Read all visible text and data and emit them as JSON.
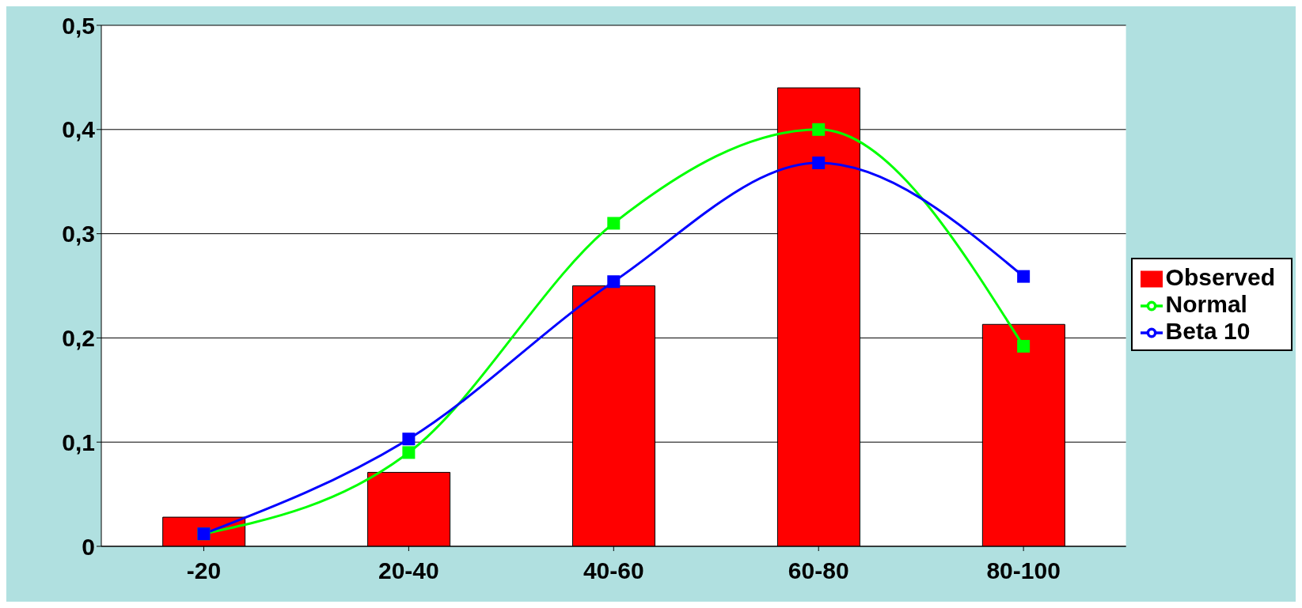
{
  "chart_data": {
    "type": "bar",
    "categories": [
      "-20",
      "20-40",
      "40-60",
      "60-80",
      "80-100"
    ],
    "series": [
      {
        "name": "Observed",
        "color": "#ff0000",
        "values": [
          0.028,
          0.071,
          0.25,
          0.44,
          0.213
        ]
      },
      {
        "name": "Normal",
        "type": "line",
        "color": "#00ff00",
        "values": [
          0.012,
          0.09,
          0.31,
          0.4,
          0.192
        ]
      },
      {
        "name": "Beta 10",
        "type": "line",
        "color": "#0000ff",
        "values": [
          0.012,
          0.103,
          0.254,
          0.368,
          0.259
        ]
      }
    ],
    "ylim": [
      0,
      0.5
    ],
    "yticks": [
      0,
      {
        "value": 0.1,
        "label": "0,1"
      },
      {
        "value": 0.2,
        "label": "0,2"
      },
      {
        "value": 0.3,
        "label": "0,3"
      },
      {
        "value": 0.4,
        "label": "0,4"
      },
      {
        "value": 0.5,
        "label": "0,5"
      }
    ],
    "grid": "y",
    "legend": "right",
    "marker": "square"
  }
}
